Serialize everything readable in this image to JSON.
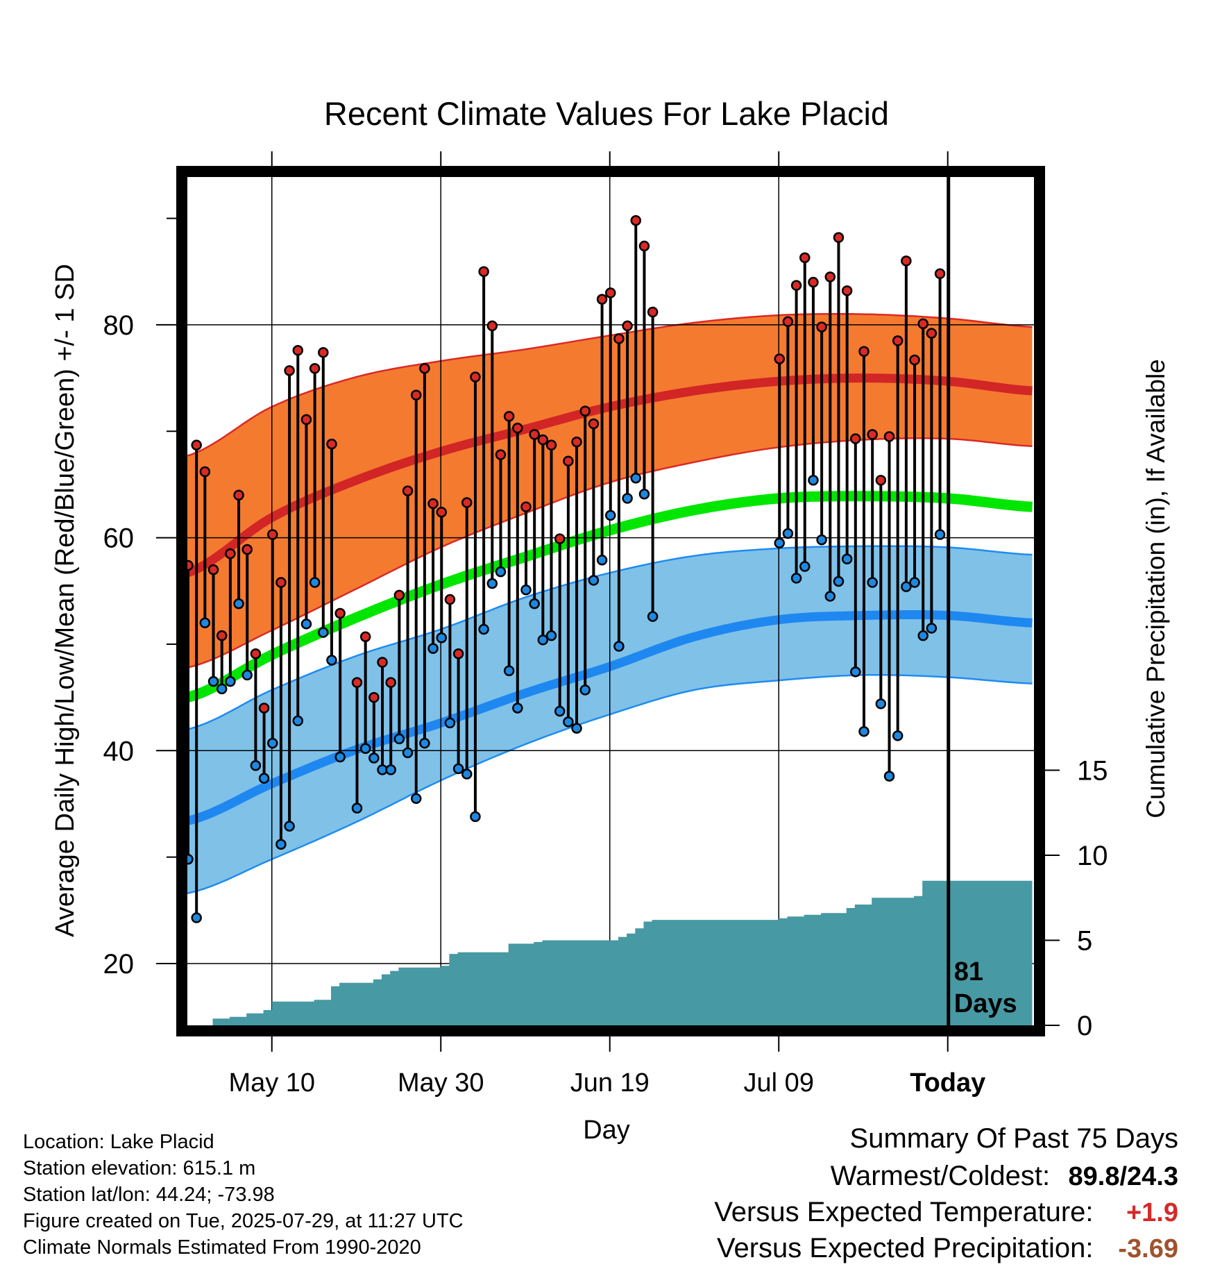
{
  "colors": {
    "high_band": "#F47A30",
    "high_band_edge": "#D92A25",
    "low_band": "#80C1E8",
    "low_band_edge": "#1E8CF0",
    "normal_high_line": "#D22525",
    "normal_low_line": "#1E88F0",
    "normal_mean_line": "#00E600",
    "precip_fill": "#4799A4",
    "high_marker": "#D92A25",
    "low_marker": "#1E88E0",
    "positive_temp_value": "#D42A2A",
    "negative_precip_value": "#A0522D"
  },
  "chart_data": {
    "type": "climate-range",
    "title": "Recent Climate Values For Lake Placid",
    "xlabel": "Day",
    "ylabel": "Average Daily High/Low/Mean (Red/Blue/Green) +/- 1 SD",
    "y2label": "Cumulative Precipitation (in), If Available",
    "x_tick_labels": [
      "May 10",
      "May 30",
      "Jun 19",
      "Jul 09",
      "Today"
    ],
    "x_tick_days": [
      10,
      30,
      50,
      70,
      90
    ],
    "x_range_days": [
      0,
      100
    ],
    "y_ticks": [
      20,
      40,
      60,
      80
    ],
    "y_range": [
      14.3,
      95.5
    ],
    "y2_ticks": [
      0,
      5,
      10,
      15
    ],
    "today_marker": "81\nDays",
    "grid": true,
    "normal_curves_by_day": {
      "day": [
        0,
        10,
        20,
        30,
        40,
        50,
        60,
        70,
        80,
        90,
        100
      ],
      "high_mean": [
        56.7,
        61.9,
        65.4,
        68.1,
        70.2,
        72.3,
        73.8,
        74.7,
        75.0,
        74.7,
        73.8
      ],
      "high_upper": [
        67.7,
        72.3,
        75.1,
        76.6,
        77.7,
        79.0,
        80.2,
        80.9,
        81.0,
        80.6,
        79.8
      ],
      "high_lower": [
        47.8,
        51.3,
        55.2,
        59.1,
        62.3,
        65.2,
        67.1,
        68.5,
        69.2,
        69.3,
        68.6
      ],
      "mean": [
        45.0,
        49.0,
        52.5,
        55.6,
        58.2,
        60.7,
        62.6,
        63.7,
        63.9,
        63.7,
        62.9
      ],
      "low_mean": [
        33.4,
        36.9,
        40.1,
        42.6,
        45.4,
        47.9,
        50.7,
        52.3,
        52.7,
        52.7,
        52.0
      ],
      "low_upper": [
        42.0,
        45.7,
        48.9,
        51.4,
        54.4,
        56.7,
        58.3,
        59.0,
        59.2,
        59.1,
        58.4
      ],
      "low_lower": [
        26.6,
        29.8,
        33.3,
        37.2,
        40.6,
        43.4,
        45.7,
        46.6,
        47.1,
        46.9,
        46.3
      ]
    },
    "daily_observations": {
      "day": [
        0,
        1,
        2,
        3,
        4,
        5,
        6,
        7,
        8,
        9,
        10,
        11,
        12,
        13,
        14,
        15,
        16,
        17,
        18,
        19,
        20,
        21,
        22,
        23,
        24,
        25,
        26,
        27,
        28,
        29,
        30,
        31,
        32,
        33,
        34,
        35,
        36,
        37,
        38,
        39,
        40,
        41,
        42,
        43,
        44,
        45,
        46,
        47,
        48,
        49,
        50,
        51,
        52,
        53,
        54,
        55,
        56,
        57,
        58,
        59,
        60,
        61,
        62,
        63,
        64,
        65,
        66,
        67,
        68,
        69,
        70,
        71,
        72,
        73,
        74,
        75,
        76,
        77,
        78,
        79,
        80,
        81,
        82,
        83,
        84,
        85,
        86,
        87,
        88,
        89
      ],
      "high": [
        57.4,
        68.7,
        66.2,
        57.0,
        50.8,
        58.5,
        64.0,
        58.9,
        49.1,
        44.0,
        60.3,
        55.8,
        75.7,
        77.6,
        71.1,
        75.9,
        77.4,
        68.8,
        52.9,
        null,
        46.4,
        50.7,
        45.0,
        48.3,
        46.4,
        54.6,
        64.4,
        73.4,
        75.9,
        63.2,
        62.4,
        54.2,
        49.1,
        63.3,
        75.1,
        85.0,
        79.9,
        67.8,
        71.4,
        70.3,
        62.9,
        69.7,
        69.2,
        68.7,
        59.9,
        67.2,
        69.0,
        71.9,
        70.7,
        82.4,
        83.0,
        78.7,
        79.9,
        89.8,
        87.4,
        81.2,
        null,
        null,
        null,
        null,
        null,
        null,
        null,
        null,
        null,
        null,
        null,
        null,
        null,
        null,
        76.8,
        80.3,
        83.7,
        86.3,
        84.0,
        79.8,
        84.5,
        88.2,
        83.2,
        69.3,
        77.5,
        69.7,
        65.4,
        69.5,
        78.5,
        86.0,
        76.7,
        80.1,
        79.2,
        84.8
      ],
      "low": [
        29.8,
        24.3,
        52.0,
        46.5,
        45.8,
        46.5,
        53.8,
        47.1,
        38.6,
        37.4,
        40.7,
        31.2,
        32.9,
        42.8,
        51.9,
        55.8,
        51.1,
        48.5,
        39.4,
        null,
        34.6,
        40.2,
        39.3,
        38.2,
        38.2,
        41.1,
        39.8,
        35.5,
        40.7,
        49.6,
        50.6,
        42.6,
        38.3,
        37.8,
        33.8,
        51.4,
        55.7,
        56.8,
        47.5,
        44.0,
        55.1,
        53.8,
        50.4,
        50.8,
        43.7,
        42.7,
        42.1,
        45.7,
        56.0,
        57.9,
        62.1,
        49.8,
        63.7,
        65.6,
        64.1,
        52.6,
        null,
        null,
        null,
        null,
        null,
        null,
        null,
        null,
        null,
        null,
        null,
        null,
        null,
        null,
        59.5,
        60.4,
        56.2,
        57.3,
        65.4,
        59.8,
        54.5,
        55.9,
        58.0,
        47.4,
        41.8,
        55.8,
        44.4,
        37.6,
        41.4,
        55.4,
        55.8,
        50.8,
        51.5,
        60.3
      ]
    },
    "cumulative_precip": {
      "day": [
        2,
        3,
        5,
        7,
        8,
        9,
        10,
        15,
        17,
        18,
        19,
        22,
        23,
        24,
        25,
        28,
        30,
        31,
        32,
        33,
        34,
        35,
        36,
        37,
        38,
        39,
        40,
        41,
        42,
        43,
        44,
        45,
        46,
        47,
        48,
        49,
        50,
        51,
        52,
        53,
        54,
        55,
        61,
        62,
        63,
        64,
        65,
        66,
        67,
        68,
        69,
        70,
        71,
        72,
        73,
        74,
        75,
        76,
        77,
        78,
        79,
        80,
        81,
        82,
        83,
        84,
        85,
        86,
        87,
        88,
        89,
        90,
        96,
        100
      ],
      "inches": [
        0.0,
        0.4,
        0.5,
        0.7,
        0.7,
        0.9,
        1.4,
        1.5,
        2.3,
        2.5,
        2.5,
        2.7,
        3.0,
        3.2,
        3.4,
        3.4,
        3.5,
        4.2,
        4.3,
        4.3,
        4.3,
        4.3,
        4.3,
        4.3,
        4.8,
        4.8,
        4.8,
        4.9,
        5.0,
        5.0,
        5.0,
        5.0,
        5.0,
        5.0,
        5.0,
        5.0,
        5.0,
        5.2,
        5.4,
        5.7,
        6.1,
        6.2,
        6.2,
        6.2,
        6.2,
        6.2,
        6.2,
        6.2,
        6.2,
        6.2,
        6.2,
        6.3,
        6.4,
        6.4,
        6.5,
        6.5,
        6.6,
        6.6,
        6.6,
        6.9,
        7.1,
        7.1,
        7.5,
        7.5,
        7.5,
        7.5,
        7.5,
        7.6,
        8.5,
        8.5,
        8.5,
        8.5,
        8.5,
        8.5
      ]
    }
  },
  "footer": {
    "location": "Location: Lake Placid",
    "elevation": "Station elevation: 615.1 m",
    "latlon": "Station lat/lon: 44.24; -73.98",
    "created": "Figure created on Tue, 2025-07-29, at 11:27 UTC",
    "normals": "Climate Normals Estimated From 1990-2020"
  },
  "summary": {
    "heading": "Summary Of Past 75 Days",
    "warmest_coldest_label": "Warmest/Coldest:",
    "warmest_coldest_value": "89.8/24.3",
    "temp_label": "Versus Expected Temperature:",
    "temp_value": "+1.9",
    "precip_label": "Versus Expected Precipitation:",
    "precip_value": "-3.69"
  }
}
